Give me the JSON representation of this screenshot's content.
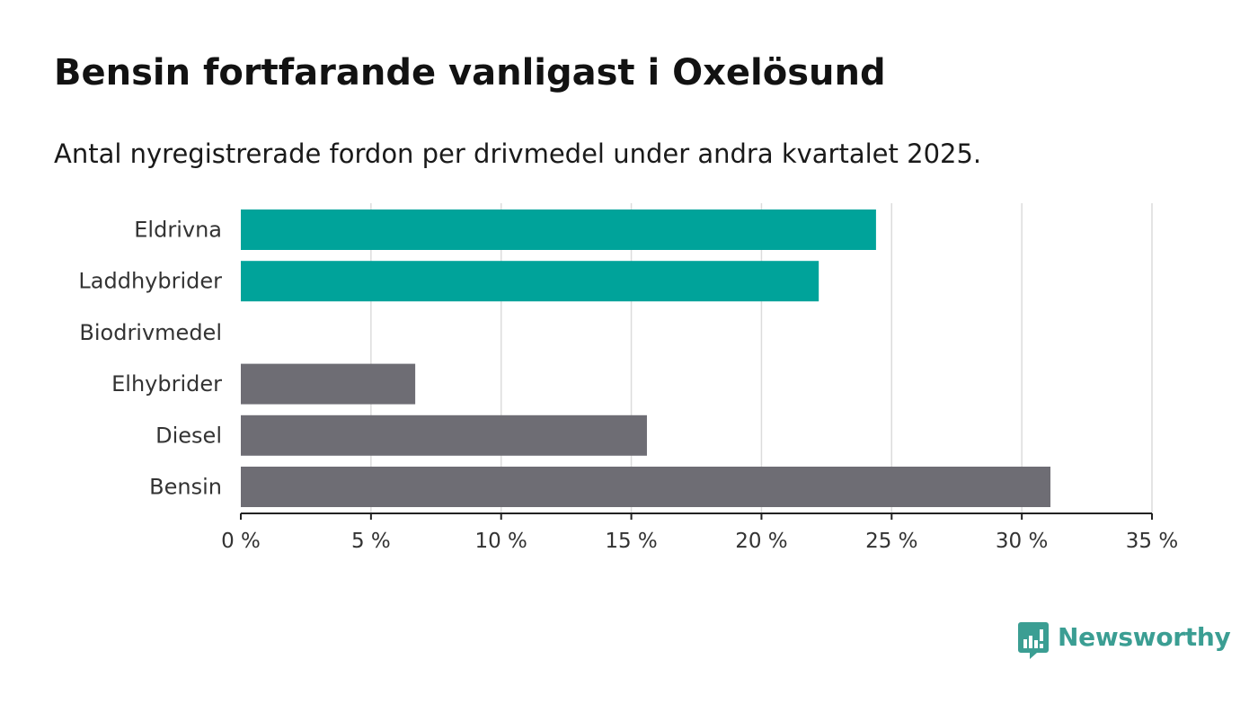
{
  "title": "Bensin fortfarande vanligast i Oxelösund",
  "subtitle": "Antal nyregistrerade fordon per drivmedel under andra kvartalet 2025.",
  "brand": {
    "name": "Newsworthy",
    "color": "#3b9e93",
    "icon": "bar-chart-speech-bubble-icon"
  },
  "colors": {
    "electric": "#00a39a",
    "fossil": "#6e6d74",
    "grid": "#dcdcdc",
    "axis": "#222222"
  },
  "chart_data": {
    "type": "bar",
    "orientation": "horizontal",
    "categories": [
      "Eldrivna",
      "Laddhybrider",
      "Biodrivmedel",
      "Elhybrider",
      "Diesel",
      "Bensin"
    ],
    "values": [
      24.4,
      22.2,
      0,
      6.7,
      15.6,
      31.1
    ],
    "bar_colors": [
      "#00a39a",
      "#00a39a",
      "#00a39a",
      "#6e6d74",
      "#6e6d74",
      "#6e6d74"
    ],
    "xlim": [
      0,
      35
    ],
    "xticks": [
      0,
      5,
      10,
      15,
      20,
      25,
      30,
      35
    ],
    "xtick_labels": [
      "0 %",
      "5 %",
      "10 %",
      "15 %",
      "20 %",
      "25 %",
      "30 %",
      "35 %"
    ],
    "xlabel": "",
    "ylabel": "",
    "grid": true,
    "legend": "none"
  }
}
